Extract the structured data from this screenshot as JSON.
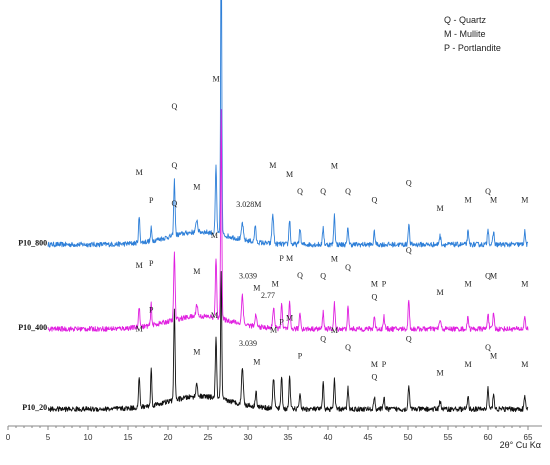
{
  "chart_data": {
    "type": "line",
    "xlabel": "2θ° Cu Kα",
    "xlim": [
      0,
      65
    ],
    "xticks": [
      0,
      5,
      10,
      15,
      20,
      25,
      30,
      35,
      40,
      45,
      50,
      55,
      60,
      65
    ],
    "grid": false,
    "legend_position": "top-right",
    "legend": [
      "Q - Quartz",
      "M - Mullite",
      "P - Portlandite"
    ],
    "series": [
      {
        "name": "P10_800",
        "color": "#2E7FD8",
        "base": 0.43,
        "bump": 0.03,
        "noise": 0.012,
        "peaks": [
          {
            "x": 16.4,
            "h": 0.06,
            "w": 0.12
          },
          {
            "x": 17.9,
            "h": 0.03,
            "w": 0.1
          },
          {
            "x": 20.8,
            "h": 0.13,
            "w": 0.12
          },
          {
            "x": 23.6,
            "h": 0.03,
            "w": 0.15
          },
          {
            "x": 26.0,
            "h": 0.16,
            "w": 0.12
          },
          {
            "x": 26.65,
            "h": 0.72,
            "w": 0.1
          },
          {
            "x": 29.3,
            "h": 0.04,
            "w": 0.15
          },
          {
            "x": 30.9,
            "h": 0.04,
            "w": 0.12
          },
          {
            "x": 33.1,
            "h": 0.07,
            "w": 0.15
          },
          {
            "x": 35.2,
            "h": 0.06,
            "w": 0.12
          },
          {
            "x": 36.5,
            "h": 0.04,
            "w": 0.12
          },
          {
            "x": 39.4,
            "h": 0.04,
            "w": 0.12
          },
          {
            "x": 40.8,
            "h": 0.07,
            "w": 0.12
          },
          {
            "x": 42.5,
            "h": 0.04,
            "w": 0.12
          },
          {
            "x": 45.8,
            "h": 0.03,
            "w": 0.12
          },
          {
            "x": 50.1,
            "h": 0.05,
            "w": 0.12
          },
          {
            "x": 54.0,
            "h": 0.02,
            "w": 0.15
          },
          {
            "x": 57.5,
            "h": 0.03,
            "w": 0.12
          },
          {
            "x": 60.0,
            "h": 0.04,
            "w": 0.12
          },
          {
            "x": 60.7,
            "h": 0.03,
            "w": 0.12
          },
          {
            "x": 64.6,
            "h": 0.03,
            "w": 0.12
          }
        ],
        "labels": [
          {
            "x": 16.4,
            "text": "M",
            "dy": -0.1
          },
          {
            "x": 17.9,
            "text": "P",
            "dy": -0.06
          },
          {
            "x": 20.8,
            "text": "Q",
            "dy": -0.17
          },
          {
            "x": 23.6,
            "text": "M",
            "dy": -0.07
          },
          {
            "x": 26.0,
            "text": "M",
            "dy": -0.2
          },
          {
            "x": 26.65,
            "text": "Q",
            "dy": -0.76
          },
          {
            "x": 30.1,
            "text": "3.028M",
            "dy": -0.08
          },
          {
            "x": 33.1,
            "text": "M",
            "dy": -0.11
          },
          {
            "x": 35.2,
            "text": "M",
            "dy": -0.1
          },
          {
            "x": 36.5,
            "text": "Q",
            "dy": -0.08
          },
          {
            "x": 39.4,
            "text": "Q",
            "dy": -0.08
          },
          {
            "x": 40.8,
            "text": "M",
            "dy": -0.11
          },
          {
            "x": 42.5,
            "text": "Q",
            "dy": -0.08
          },
          {
            "x": 45.8,
            "text": "Q",
            "dy": -0.07
          },
          {
            "x": 50.1,
            "text": "Q",
            "dy": -0.09
          },
          {
            "x": 54.0,
            "text": "M",
            "dy": -0.06
          },
          {
            "x": 57.5,
            "text": "M",
            "dy": -0.07
          },
          {
            "x": 60.0,
            "text": "Q",
            "dy": -0.08
          },
          {
            "x": 60.7,
            "text": "M",
            "dy": -0.07
          },
          {
            "x": 64.6,
            "text": "M",
            "dy": -0.07
          }
        ]
      },
      {
        "name": "P10_400",
        "color": "#E020E0",
        "base": 0.23,
        "bump": 0.03,
        "noise": 0.012,
        "peaks": [
          {
            "x": 16.4,
            "h": 0.05,
            "w": 0.12
          },
          {
            "x": 17.9,
            "h": 0.05,
            "w": 0.1
          },
          {
            "x": 20.8,
            "h": 0.16,
            "w": 0.12
          },
          {
            "x": 23.6,
            "h": 0.03,
            "w": 0.15
          },
          {
            "x": 26.0,
            "h": 0.14,
            "w": 0.12
          },
          {
            "x": 26.65,
            "h": 0.5,
            "w": 0.1
          },
          {
            "x": 29.3,
            "h": 0.07,
            "w": 0.15
          },
          {
            "x": 31.0,
            "h": 0.03,
            "w": 0.12
          },
          {
            "x": 33.2,
            "h": 0.05,
            "w": 0.15
          },
          {
            "x": 34.2,
            "h": 0.06,
            "w": 0.12
          },
          {
            "x": 35.2,
            "h": 0.06,
            "w": 0.12
          },
          {
            "x": 36.5,
            "h": 0.04,
            "w": 0.12
          },
          {
            "x": 39.4,
            "h": 0.04,
            "w": 0.12
          },
          {
            "x": 40.8,
            "h": 0.06,
            "w": 0.12
          },
          {
            "x": 42.5,
            "h": 0.05,
            "w": 0.12
          },
          {
            "x": 45.8,
            "h": 0.03,
            "w": 0.12
          },
          {
            "x": 47.0,
            "h": 0.03,
            "w": 0.12
          },
          {
            "x": 50.1,
            "h": 0.07,
            "w": 0.12
          },
          {
            "x": 54.0,
            "h": 0.02,
            "w": 0.15
          },
          {
            "x": 57.5,
            "h": 0.03,
            "w": 0.12
          },
          {
            "x": 60.0,
            "h": 0.04,
            "w": 0.12
          },
          {
            "x": 60.7,
            "h": 0.04,
            "w": 0.12
          },
          {
            "x": 64.6,
            "h": 0.03,
            "w": 0.12
          }
        ],
        "labels": [
          {
            "x": 16.4,
            "text": "M",
            "dy": -0.09
          },
          {
            "x": 17.9,
            "text": "P",
            "dy": -0.09
          },
          {
            "x": 20.8,
            "text": "Q",
            "dy": -0.2
          },
          {
            "x": 23.6,
            "text": "M",
            "dy": -0.07
          },
          {
            "x": 25.8,
            "text": "M",
            "dy": -0.18
          },
          {
            "x": 30.0,
            "text": "3.039",
            "dy": -0.11
          },
          {
            "x": 31.1,
            "text": "M",
            "dy": -0.07
          },
          {
            "x": 32.5,
            "text": "2.77",
            "dy": -0.07
          },
          {
            "x": 33.4,
            "text": "M",
            "dy": -0.09
          },
          {
            "x": 34.2,
            "text": "P",
            "dy": -0.1
          },
          {
            "x": 35.2,
            "text": "M",
            "dy": -0.1
          },
          {
            "x": 36.5,
            "text": "Q",
            "dy": -0.08
          },
          {
            "x": 39.4,
            "text": "Q",
            "dy": -0.08
          },
          {
            "x": 40.8,
            "text": "M",
            "dy": -0.1
          },
          {
            "x": 42.5,
            "text": "Q",
            "dy": -0.09
          },
          {
            "x": 45.8,
            "text": "M",
            "dy": -0.07
          },
          {
            "x": 45.8,
            "text": "Q",
            "dy": -0.04
          },
          {
            "x": 47.0,
            "text": "P",
            "dy": -0.07
          },
          {
            "x": 50.1,
            "text": "Q",
            "dy": -0.11
          },
          {
            "x": 54.0,
            "text": "M",
            "dy": -0.06
          },
          {
            "x": 57.5,
            "text": "M",
            "dy": -0.07
          },
          {
            "x": 60.0,
            "text": "Q",
            "dy": -0.08
          },
          {
            "x": 60.7,
            "text": "M",
            "dy": -0.08
          },
          {
            "x": 64.6,
            "text": "M",
            "dy": -0.07
          }
        ]
      },
      {
        "name": "P10_20",
        "color": "#111111",
        "base": 0.04,
        "bump": 0.03,
        "noise": 0.012,
        "peaks": [
          {
            "x": 16.4,
            "h": 0.07,
            "w": 0.12
          },
          {
            "x": 17.9,
            "h": 0.09,
            "w": 0.1
          },
          {
            "x": 20.8,
            "h": 0.21,
            "w": 0.12
          },
          {
            "x": 23.6,
            "h": 0.03,
            "w": 0.15
          },
          {
            "x": 26.0,
            "h": 0.14,
            "w": 0.12
          },
          {
            "x": 26.65,
            "h": 0.3,
            "w": 0.1
          },
          {
            "x": 29.3,
            "h": 0.09,
            "w": 0.15
          },
          {
            "x": 31.0,
            "h": 0.04,
            "w": 0.12
          },
          {
            "x": 33.2,
            "h": 0.07,
            "w": 0.15
          },
          {
            "x": 34.2,
            "h": 0.08,
            "w": 0.12
          },
          {
            "x": 35.2,
            "h": 0.08,
            "w": 0.12
          },
          {
            "x": 36.5,
            "h": 0.04,
            "w": 0.12
          },
          {
            "x": 39.4,
            "h": 0.06,
            "w": 0.12
          },
          {
            "x": 40.8,
            "h": 0.07,
            "w": 0.12
          },
          {
            "x": 42.5,
            "h": 0.05,
            "w": 0.12
          },
          {
            "x": 45.8,
            "h": 0.03,
            "w": 0.12
          },
          {
            "x": 47.0,
            "h": 0.03,
            "w": 0.12
          },
          {
            "x": 50.1,
            "h": 0.06,
            "w": 0.12
          },
          {
            "x": 54.0,
            "h": 0.02,
            "w": 0.15
          },
          {
            "x": 57.5,
            "h": 0.03,
            "w": 0.12
          },
          {
            "x": 60.0,
            "h": 0.05,
            "w": 0.12
          },
          {
            "x": 60.7,
            "h": 0.04,
            "w": 0.12
          },
          {
            "x": 64.6,
            "h": 0.03,
            "w": 0.12
          }
        ],
        "labels": [
          {
            "x": 16.4,
            "text": "M",
            "dy": -0.11
          },
          {
            "x": 17.9,
            "text": "P",
            "dy": -0.13
          },
          {
            "x": 20.8,
            "text": "Q",
            "dy": -0.25
          },
          {
            "x": 23.6,
            "text": "M",
            "dy": -0.07
          },
          {
            "x": 25.8,
            "text": "M",
            "dy": -0.18
          },
          {
            "x": 30.0,
            "text": "3.039",
            "dy": -0.14
          },
          {
            "x": 31.1,
            "text": "M",
            "dy": -0.08
          },
          {
            "x": 33.2,
            "text": "M",
            "dy": -0.11
          },
          {
            "x": 34.2,
            "text": "P",
            "dy": -0.12
          },
          {
            "x": 35.2,
            "text": "M",
            "dy": -0.13
          },
          {
            "x": 36.5,
            "text": "P",
            "dy": -0.08
          },
          {
            "x": 39.4,
            "text": "Q",
            "dy": -0.1
          },
          {
            "x": 40.8,
            "text": "M",
            "dy": -0.11
          },
          {
            "x": 42.5,
            "text": "Q",
            "dy": -0.09
          },
          {
            "x": 45.8,
            "text": "M",
            "dy": -0.07
          },
          {
            "x": 45.8,
            "text": "Q",
            "dy": -0.04
          },
          {
            "x": 47.0,
            "text": "P",
            "dy": -0.07
          },
          {
            "x": 50.1,
            "text": "Q",
            "dy": -0.1
          },
          {
            "x": 54.0,
            "text": "M",
            "dy": -0.06
          },
          {
            "x": 57.5,
            "text": "M",
            "dy": -0.07
          },
          {
            "x": 60.0,
            "text": "Q",
            "dy": -0.09
          },
          {
            "x": 60.7,
            "text": "M",
            "dy": -0.08
          },
          {
            "x": 64.6,
            "text": "M",
            "dy": -0.07
          }
        ]
      }
    ]
  }
}
